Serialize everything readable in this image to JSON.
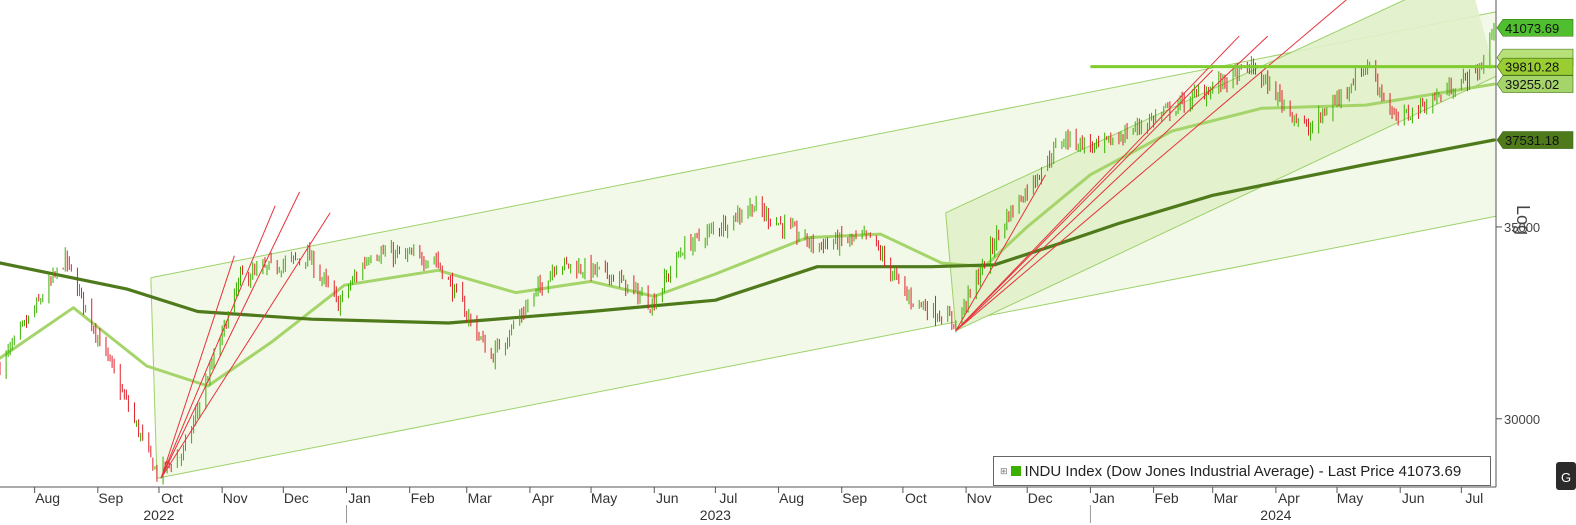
{
  "chart_data": {
    "type": "candlestick",
    "y_scale": "log",
    "ylim": [
      28400,
      42000
    ],
    "y_ticks": [
      30000,
      35000
    ],
    "y_tick_labels": [
      "30000",
      "35000"
    ],
    "y_axis_label": "Log",
    "x_start": "2022-07-15",
    "x_end": "2024-07-18",
    "x_month_ticks": [
      {
        "label": "Aug",
        "date": "2022-08-01"
      },
      {
        "label": "Sep",
        "date": "2022-09-01"
      },
      {
        "label": "Oct",
        "date": "2022-10-01"
      },
      {
        "label": "Nov",
        "date": "2022-11-01"
      },
      {
        "label": "Dec",
        "date": "2022-12-01"
      },
      {
        "label": "Jan",
        "date": "2023-01-01"
      },
      {
        "label": "Feb",
        "date": "2023-02-01"
      },
      {
        "label": "Mar",
        "date": "2023-03-01"
      },
      {
        "label": "Apr",
        "date": "2023-04-01"
      },
      {
        "label": "May",
        "date": "2023-05-01"
      },
      {
        "label": "Jun",
        "date": "2023-06-01"
      },
      {
        "label": "Jul",
        "date": "2023-07-01"
      },
      {
        "label": "Aug",
        "date": "2023-08-01"
      },
      {
        "label": "Sep",
        "date": "2023-09-01"
      },
      {
        "label": "Oct",
        "date": "2023-10-01"
      },
      {
        "label": "Nov",
        "date": "2023-11-01"
      },
      {
        "label": "Dec",
        "date": "2023-12-01"
      },
      {
        "label": "Jan",
        "date": "2024-01-01"
      },
      {
        "label": "Feb",
        "date": "2024-02-01"
      },
      {
        "label": "Mar",
        "date": "2024-03-01"
      },
      {
        "label": "Apr",
        "date": "2024-04-01"
      },
      {
        "label": "May",
        "date": "2024-05-01"
      },
      {
        "label": "Jun",
        "date": "2024-06-01"
      },
      {
        "label": "Jul",
        "date": "2024-07-01"
      }
    ],
    "x_year_labels": [
      {
        "label": "2022",
        "date": "2022-10-01"
      },
      {
        "label": "2023",
        "date": "2023-07-01"
      },
      {
        "label": "2024",
        "date": "2024-04-01"
      }
    ],
    "price_path": [
      [
        "2022-07-15",
        31300
      ],
      [
        "2022-08-16",
        34100
      ],
      [
        "2022-09-30",
        28700
      ],
      [
        "2022-10-13",
        29200
      ],
      [
        "2022-11-10",
        33600
      ],
      [
        "2022-12-13",
        34200
      ],
      [
        "2022-12-28",
        32900
      ],
      [
        "2023-01-13",
        34300
      ],
      [
        "2023-02-14",
        34100
      ],
      [
        "2023-03-13",
        31500
      ],
      [
        "2023-04-14",
        34000
      ],
      [
        "2023-05-10",
        33700
      ],
      [
        "2023-05-31",
        32900
      ],
      [
        "2023-06-15",
        34400
      ],
      [
        "2023-07-19",
        35600
      ],
      [
        "2023-08-18",
        34500
      ],
      [
        "2023-09-15",
        34700
      ],
      [
        "2023-10-03",
        33100
      ],
      [
        "2023-10-27",
        32400
      ],
      [
        "2023-11-20",
        35200
      ],
      [
        "2023-12-19",
        37600
      ],
      [
        "2024-01-05",
        37300
      ],
      [
        "2024-02-13",
        38600
      ],
      [
        "2024-03-20",
        39800
      ],
      [
        "2024-04-17",
        37800
      ],
      [
        "2024-05-16",
        39900
      ],
      [
        "2024-05-30",
        38100
      ],
      [
        "2024-06-20",
        38900
      ],
      [
        "2024-07-10",
        39700
      ],
      [
        "2024-07-17",
        41073.69
      ]
    ],
    "moving_averages": [
      {
        "name": "",
        "color": "#a5d46a",
        "points": [
          [
            "2022-07-15",
            31500
          ],
          [
            "2022-08-20",
            32800
          ],
          [
            "2022-09-25",
            31300
          ],
          [
            "2022-10-25",
            30800
          ],
          [
            "2022-11-25",
            31900
          ],
          [
            "2022-12-31",
            33400
          ],
          [
            "2023-02-15",
            33800
          ],
          [
            "2023-03-25",
            33200
          ],
          [
            "2023-05-01",
            33500
          ],
          [
            "2023-06-01",
            33100
          ],
          [
            "2023-07-01",
            33700
          ],
          [
            "2023-08-15",
            34700
          ],
          [
            "2023-09-20",
            34800
          ],
          [
            "2023-10-20",
            34000
          ],
          [
            "2023-11-10",
            33900
          ],
          [
            "2023-12-01",
            35000
          ],
          [
            "2024-01-01",
            36500
          ],
          [
            "2024-02-10",
            37800
          ],
          [
            "2024-03-25",
            38500
          ],
          [
            "2024-05-15",
            38600
          ],
          [
            "2024-07-17",
            39255.02
          ]
        ]
      },
      {
        "name": "",
        "color": "#4f7a1c",
        "points": [
          [
            "2022-07-15",
            34000
          ],
          [
            "2022-09-15",
            33300
          ],
          [
            "2022-10-20",
            32700
          ],
          [
            "2022-12-15",
            32500
          ],
          [
            "2023-02-20",
            32400
          ],
          [
            "2023-05-01",
            32700
          ],
          [
            "2023-07-01",
            33000
          ],
          [
            "2023-08-20",
            33900
          ],
          [
            "2023-10-15",
            33900
          ],
          [
            "2023-11-15",
            33950
          ],
          [
            "2023-12-15",
            34500
          ],
          [
            "2024-01-15",
            35100
          ],
          [
            "2024-03-01",
            35900
          ],
          [
            "2024-05-15",
            36800
          ],
          [
            "2024-07-17",
            37531.18
          ]
        ]
      }
    ],
    "horizontal_level": {
      "value": 39810.28,
      "from": "2024-01-01",
      "to": "2024-07-18",
      "color": "#7fcc2f"
    },
    "channels": [
      {
        "color": "#9dd16a",
        "fill": "#f2f8e6",
        "start": [
          "2022-09-30",
          28600
        ],
        "upper_start": [
          "2022-09-27",
          33600
        ],
        "lower_end": [
          "2024-07-18",
          35300
        ],
        "upper_end": [
          "2024-07-18",
          41600
        ]
      },
      {
        "color": "#9dd16a",
        "fill": "#e1f0c9",
        "start": [
          "2023-10-27",
          32200
        ],
        "upper_start": [
          "2023-10-22",
          35400
        ],
        "lower_end": [
          "2024-07-18",
          39500
        ],
        "upper_end": [
          "2024-07-04",
          43000
        ]
      }
    ],
    "fan_lines": [
      {
        "origin": [
          "2022-10-02",
          28600
        ],
        "ends": [
          [
            "2022-11-27",
            35600
          ],
          [
            "2022-12-09",
            36000
          ],
          [
            "2022-12-24",
            35400
          ],
          [
            "2022-11-07",
            34200
          ]
        ]
      },
      {
        "origin": [
          "2023-10-27",
          32200
        ],
        "ends": [
          [
            "2023-12-10",
            36500
          ],
          [
            "2024-03-14",
            40800
          ],
          [
            "2024-03-28",
            40800
          ],
          [
            "2024-05-14",
            42500
          ],
          [
            "2024-03-01",
            39700
          ]
        ]
      }
    ],
    "price_labels": [
      {
        "value": 41073.69,
        "text": "41073.69",
        "bg": "#4fbf2f",
        "fg": "#111"
      },
      {
        "value": 40100,
        "text": "",
        "bg": "#b8e07a",
        "fg": "#111"
      },
      {
        "value": 39810.28,
        "text": "39810.28",
        "bg": "#9acd32",
        "fg": "#111"
      },
      {
        "value": 39255.02,
        "text": "39255.02",
        "bg": "#a5d46a",
        "fg": "#111"
      },
      {
        "value": 37531.18,
        "text": "37531.18",
        "bg": "#4f7a1c",
        "fg": "#ffffff"
      }
    ],
    "legend": {
      "placement": "bottom-right",
      "text": "INDU Index (Dow Jones Industrial Average) - Last Price 41073.69",
      "color": "#39b000"
    },
    "candle_colors": {
      "up": "#39b000",
      "down": "#e0202a"
    }
  }
}
